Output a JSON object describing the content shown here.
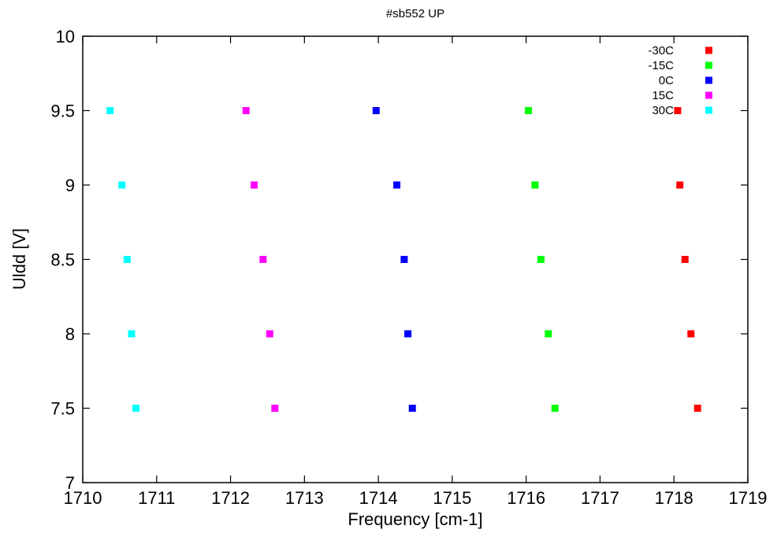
{
  "chart_data": {
    "type": "scatter",
    "title": "#sb552 UP",
    "xlabel": "Frequency [cm-1]",
    "ylabel": "Uldd [V]",
    "xlim": [
      1710,
      1719
    ],
    "ylim": [
      7,
      10
    ],
    "x_ticks": [
      "1710",
      "1711",
      "1712",
      "1713",
      "1714",
      "1715",
      "1716",
      "1717",
      "1718",
      "1719"
    ],
    "y_ticks": [
      "7",
      "7.5",
      "8",
      "8.5",
      "9",
      "9.5",
      "10"
    ],
    "grid": false,
    "legend_position": "top-right",
    "series": [
      {
        "name": "-30C",
        "color": "#ff0000",
        "points": [
          [
            1718.05,
            9.5
          ],
          [
            1718.08,
            9.0
          ],
          [
            1718.15,
            8.5
          ],
          [
            1718.23,
            8.0
          ],
          [
            1718.32,
            7.5
          ]
        ]
      },
      {
        "name": "-15C",
        "color": "#00ff00",
        "points": [
          [
            1716.03,
            9.5
          ],
          [
            1716.12,
            9.0
          ],
          [
            1716.2,
            8.5
          ],
          [
            1716.3,
            8.0
          ],
          [
            1716.39,
            7.5
          ]
        ]
      },
      {
        "name": "0C",
        "color": "#0000ff",
        "points": [
          [
            1713.97,
            9.5
          ],
          [
            1714.25,
            9.0
          ],
          [
            1714.35,
            8.5
          ],
          [
            1714.4,
            8.0
          ],
          [
            1714.46,
            7.5
          ]
        ]
      },
      {
        "name": "15C",
        "color": "#ff00ff",
        "points": [
          [
            1712.21,
            9.5
          ],
          [
            1712.32,
            9.0
          ],
          [
            1712.44,
            8.5
          ],
          [
            1712.53,
            8.0
          ],
          [
            1712.6,
            7.5
          ]
        ]
      },
      {
        "name": "30C",
        "color": "#00ffff",
        "points": [
          [
            1710.37,
            9.5
          ],
          [
            1710.53,
            9.0
          ],
          [
            1710.6,
            8.5
          ],
          [
            1710.66,
            8.0
          ],
          [
            1710.72,
            7.5
          ]
        ]
      }
    ]
  }
}
